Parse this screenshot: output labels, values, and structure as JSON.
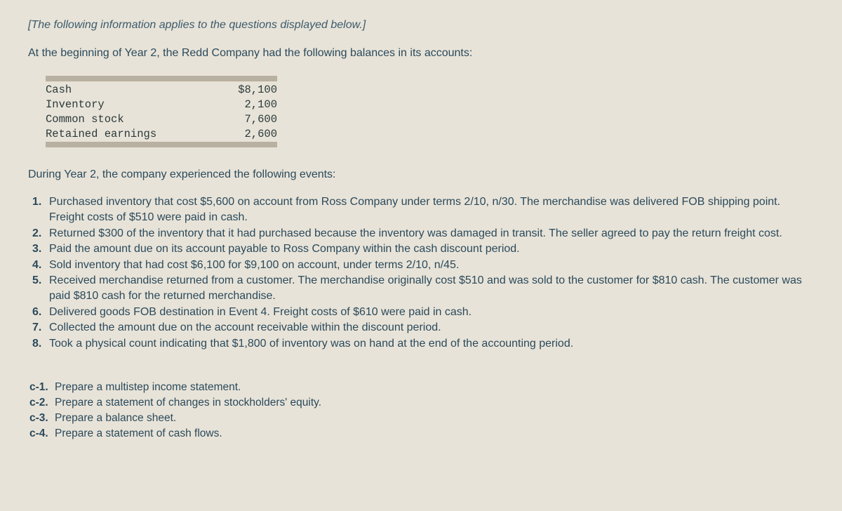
{
  "intro_note": "[The following information applies to the questions displayed below.]",
  "intro_main": "At the beginning of Year 2, the Redd Company had the following balances in its accounts:",
  "balances": {
    "rows": [
      {
        "label": "Cash",
        "value": "$8,100"
      },
      {
        "label": "Inventory",
        "value": "2,100"
      },
      {
        "label": "Common stock",
        "value": "7,600"
      },
      {
        "label": "Retained earnings",
        "value": "2,600"
      }
    ]
  },
  "events_intro": "During Year 2, the company experienced the following events:",
  "events": [
    {
      "num": "1.",
      "text": "Purchased inventory that cost $5,600 on account from Ross Company under terms 2/10, n/30. The merchandise was delivered FOB shipping point. Freight costs of $510 were paid in cash."
    },
    {
      "num": "2.",
      "text": "Returned $300 of the inventory that it had purchased because the inventory was damaged in transit. The seller agreed to pay the return freight cost."
    },
    {
      "num": "3.",
      "text": "Paid the amount due on its account payable to Ross Company within the cash discount period."
    },
    {
      "num": "4.",
      "text": "Sold inventory that had cost $6,100 for $9,100 on account, under terms 2/10, n/45."
    },
    {
      "num": "5.",
      "text": "Received merchandise returned from a customer. The merchandise originally cost $510 and was sold to the customer for $810 cash. The customer was paid $810 cash for the returned merchandise."
    },
    {
      "num": "6.",
      "text": "Delivered goods FOB destination in Event 4. Freight costs of $610 were paid in cash."
    },
    {
      "num": "7.",
      "text": "Collected the amount due on the account receivable within the discount period."
    },
    {
      "num": "8.",
      "text": "Took a physical count indicating that $1,800 of inventory was on hand at the end of the accounting period."
    }
  ],
  "tasks": [
    {
      "num": "c-1.",
      "text": "Prepare a multistep income statement."
    },
    {
      "num": "c-2.",
      "text": "Prepare a statement of changes in stockholders' equity."
    },
    {
      "num": "c-3.",
      "text": "Prepare a balance sheet."
    },
    {
      "num": "c-4.",
      "text": "Prepare a statement of cash flows."
    }
  ],
  "colors": {
    "background": "#e8e3d8",
    "text": "#2a4a5c",
    "mono_text": "#2a3a3a",
    "bar": "#b8b0a0"
  }
}
